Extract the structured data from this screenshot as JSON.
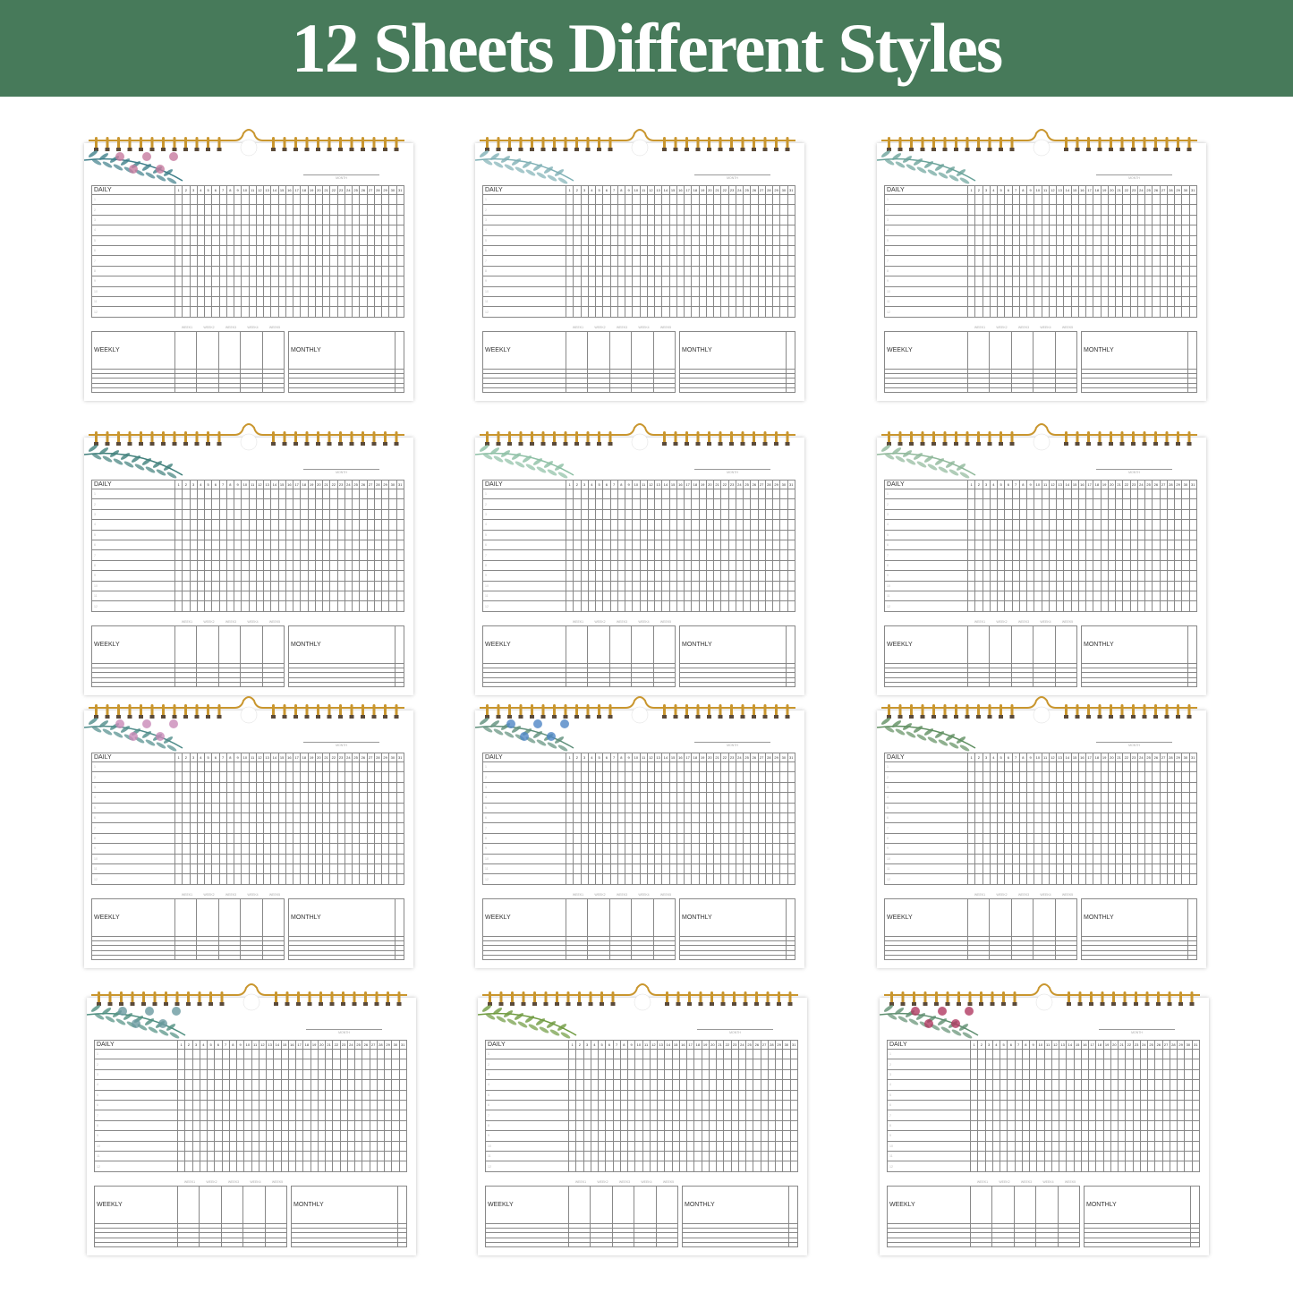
{
  "banner": {
    "title": "12 Sheets Different Styles",
    "color": "#477a5a"
  },
  "sheet": {
    "month_label": "MONTH",
    "daily_label": "DAILY",
    "weekly_label": "WEEKLY",
    "monthly_label": "MONTHLY",
    "week_labels": [
      "WEEK1",
      "WEEK2",
      "WEEK3",
      "WEEK4",
      "WEEK5"
    ],
    "day_numbers": [
      "1",
      "2",
      "3",
      "4",
      "5",
      "6",
      "7",
      "8",
      "9",
      "10",
      "11",
      "12",
      "13",
      "14",
      "15",
      "16",
      "17",
      "18",
      "19",
      "20",
      "21",
      "22",
      "23",
      "24",
      "25",
      "26",
      "27",
      "28",
      "29",
      "30",
      "31"
    ],
    "row_numbers": [
      "1",
      "2",
      "3",
      "4",
      "5",
      "6",
      "7",
      "8",
      "9",
      "10",
      "11",
      "12"
    ],
    "ring_color": "#c9962e"
  },
  "sheets": [
    {
      "style": "pink-peony",
      "leaf": "#3f7f8a",
      "flower": "#c77a9f"
    },
    {
      "style": "blue-leaf",
      "leaf": "#7fb0b5",
      "flower": ""
    },
    {
      "style": "teal-sprig",
      "leaf": "#6aa39a",
      "flower": ""
    },
    {
      "style": "eucalyptus",
      "leaf": "#3f7f7a",
      "flower": ""
    },
    {
      "style": "green-fern",
      "leaf": "#8cbfa4",
      "flower": ""
    },
    {
      "style": "sage-fern",
      "leaf": "#8fb89a",
      "flower": ""
    },
    {
      "style": "lavender",
      "leaf": "#4f8c8a",
      "flower": "#c98ab8"
    },
    {
      "style": "blue-wildflower",
      "leaf": "#5e8f7a",
      "flower": "#4f86c5"
    },
    {
      "style": "green-herb",
      "leaf": "#5f8f60",
      "flower": ""
    },
    {
      "style": "thistle",
      "leaf": "#4f8f80",
      "flower": "#6a9aa0"
    },
    {
      "style": "olive-branch",
      "leaf": "#6e9a3f",
      "flower": ""
    },
    {
      "style": "red-berry",
      "leaf": "#5f8f70",
      "flower": "#b03a62"
    }
  ]
}
